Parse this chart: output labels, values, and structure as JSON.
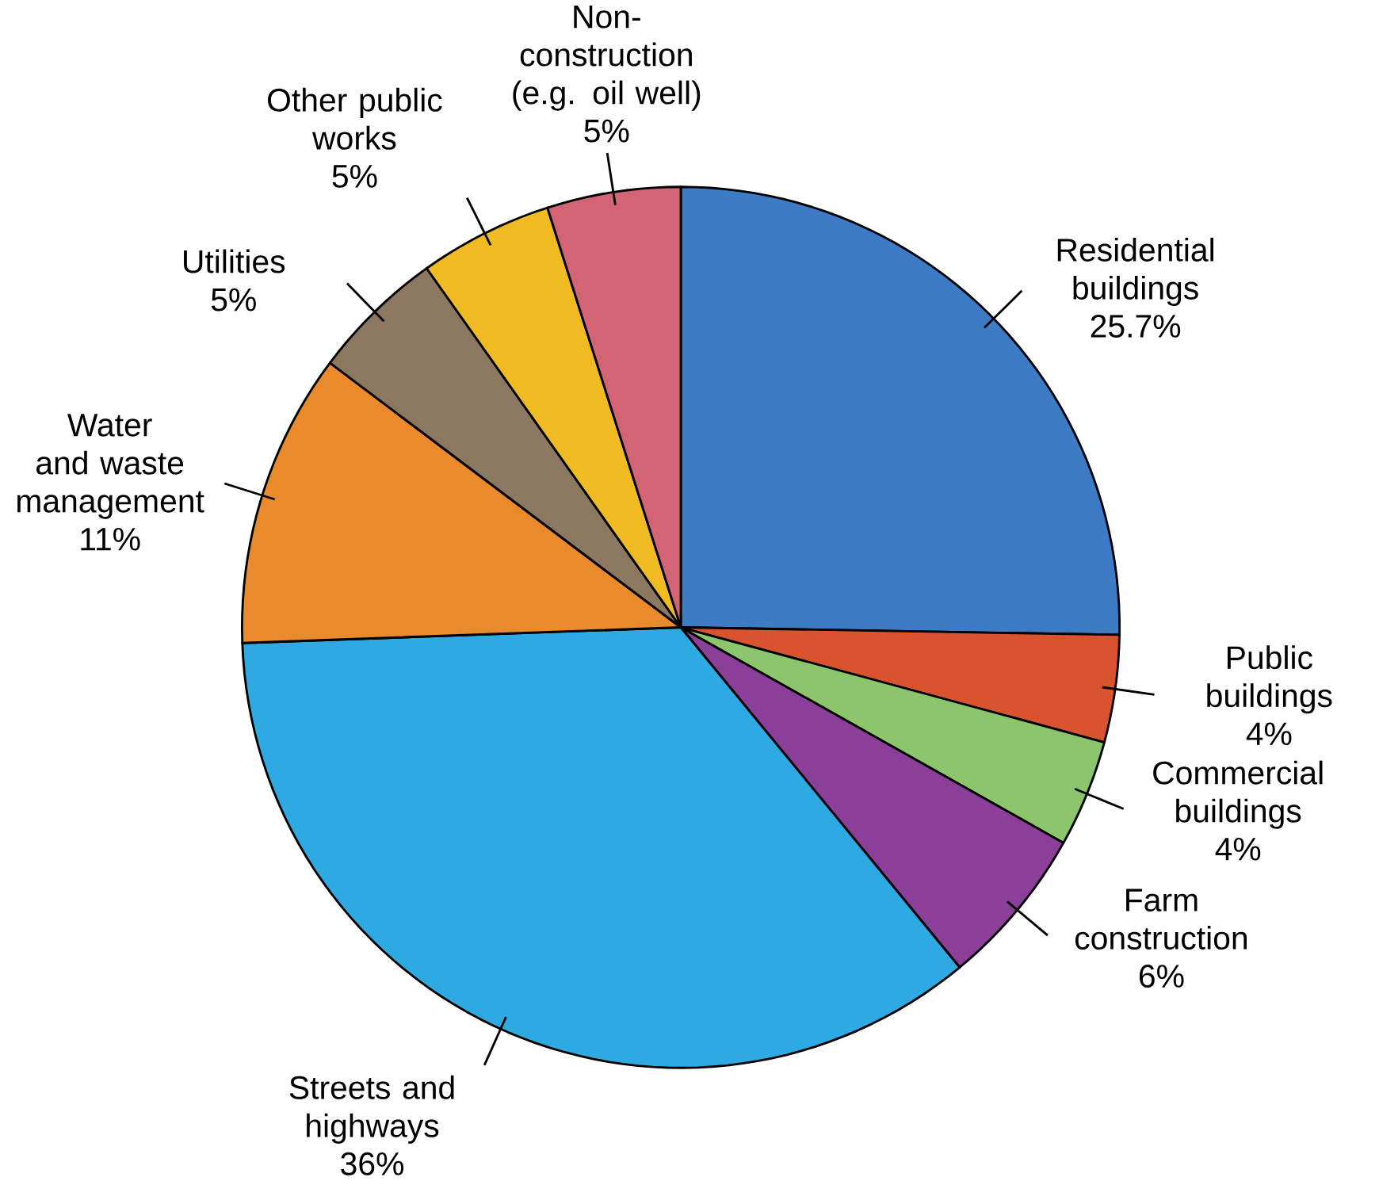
{
  "chart_data": {
    "type": "pie",
    "categories": [
      "Residential buildings",
      "Public buildings",
      "Commercial buildings",
      "Farm construction",
      "Streets and highways",
      "Water and waste management",
      "Utilities",
      "Other public works",
      "Non-construction (e.g. oil well)"
    ],
    "values": [
      25.7,
      4,
      4,
      6,
      36,
      11,
      5,
      5,
      5
    ],
    "value_labels": [
      "25.7%",
      "4%",
      "4%",
      "6%",
      "36%",
      "11%",
      "5%",
      "5%",
      "5%"
    ],
    "colors": [
      "#3d7cc4",
      "#d9532f",
      "#8cc56c",
      "#8b3f98",
      "#2fa9e2",
      "#e98b2c",
      "#8c7760",
      "#f0ba22",
      "#d26474"
    ]
  }
}
